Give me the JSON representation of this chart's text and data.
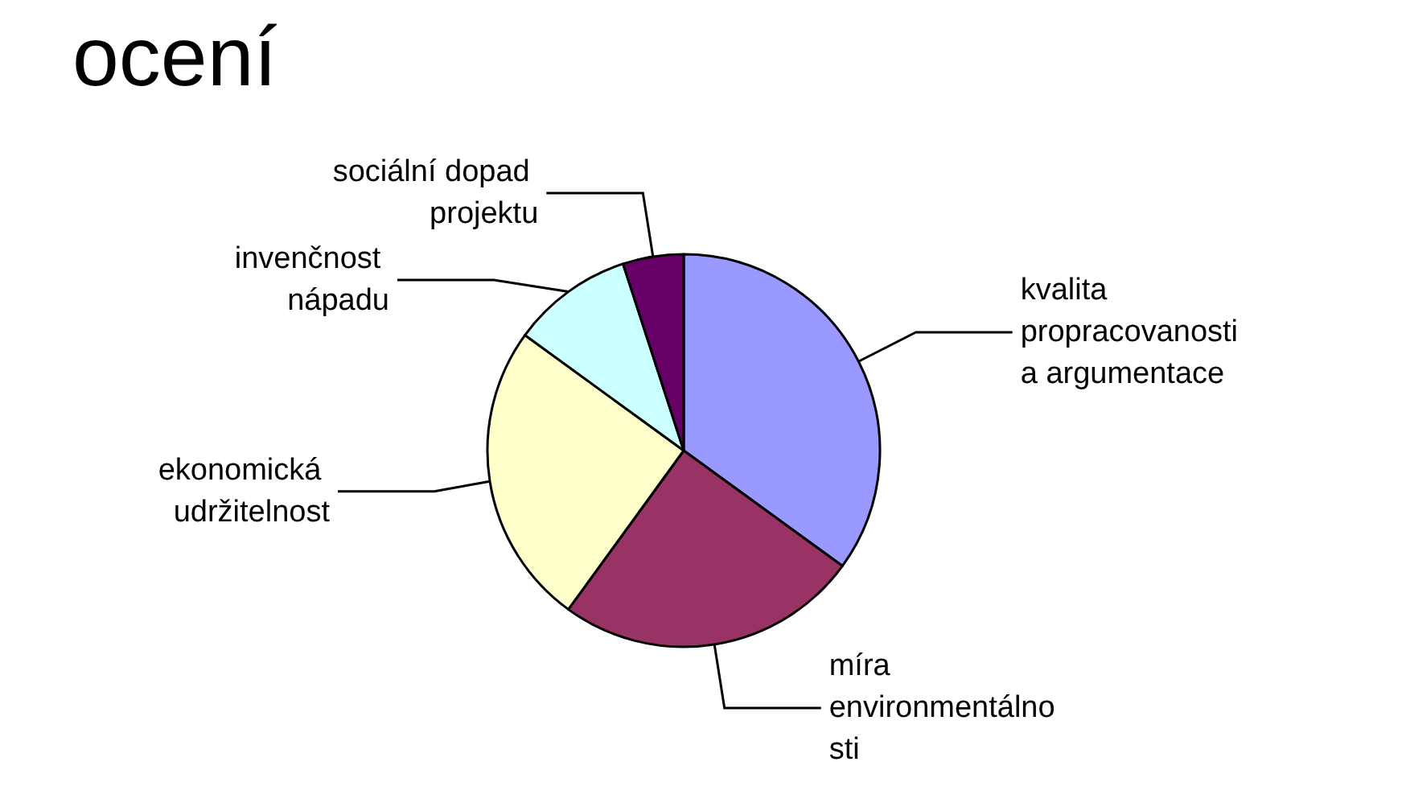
{
  "chart_data": {
    "type": "pie",
    "title": "ocení",
    "categories": [
      "kvalita propracovanosti a argumentace",
      "míra environmentálnosti",
      "ekonomická udržitelnost",
      "invenčnost nápadu",
      "sociální dopad projektu"
    ],
    "values": [
      35,
      25,
      25,
      10,
      5
    ],
    "colors": [
      "#9999ff",
      "#993366",
      "#ffffcc",
      "#ccffff",
      "#660066"
    ],
    "legend": false
  }
}
